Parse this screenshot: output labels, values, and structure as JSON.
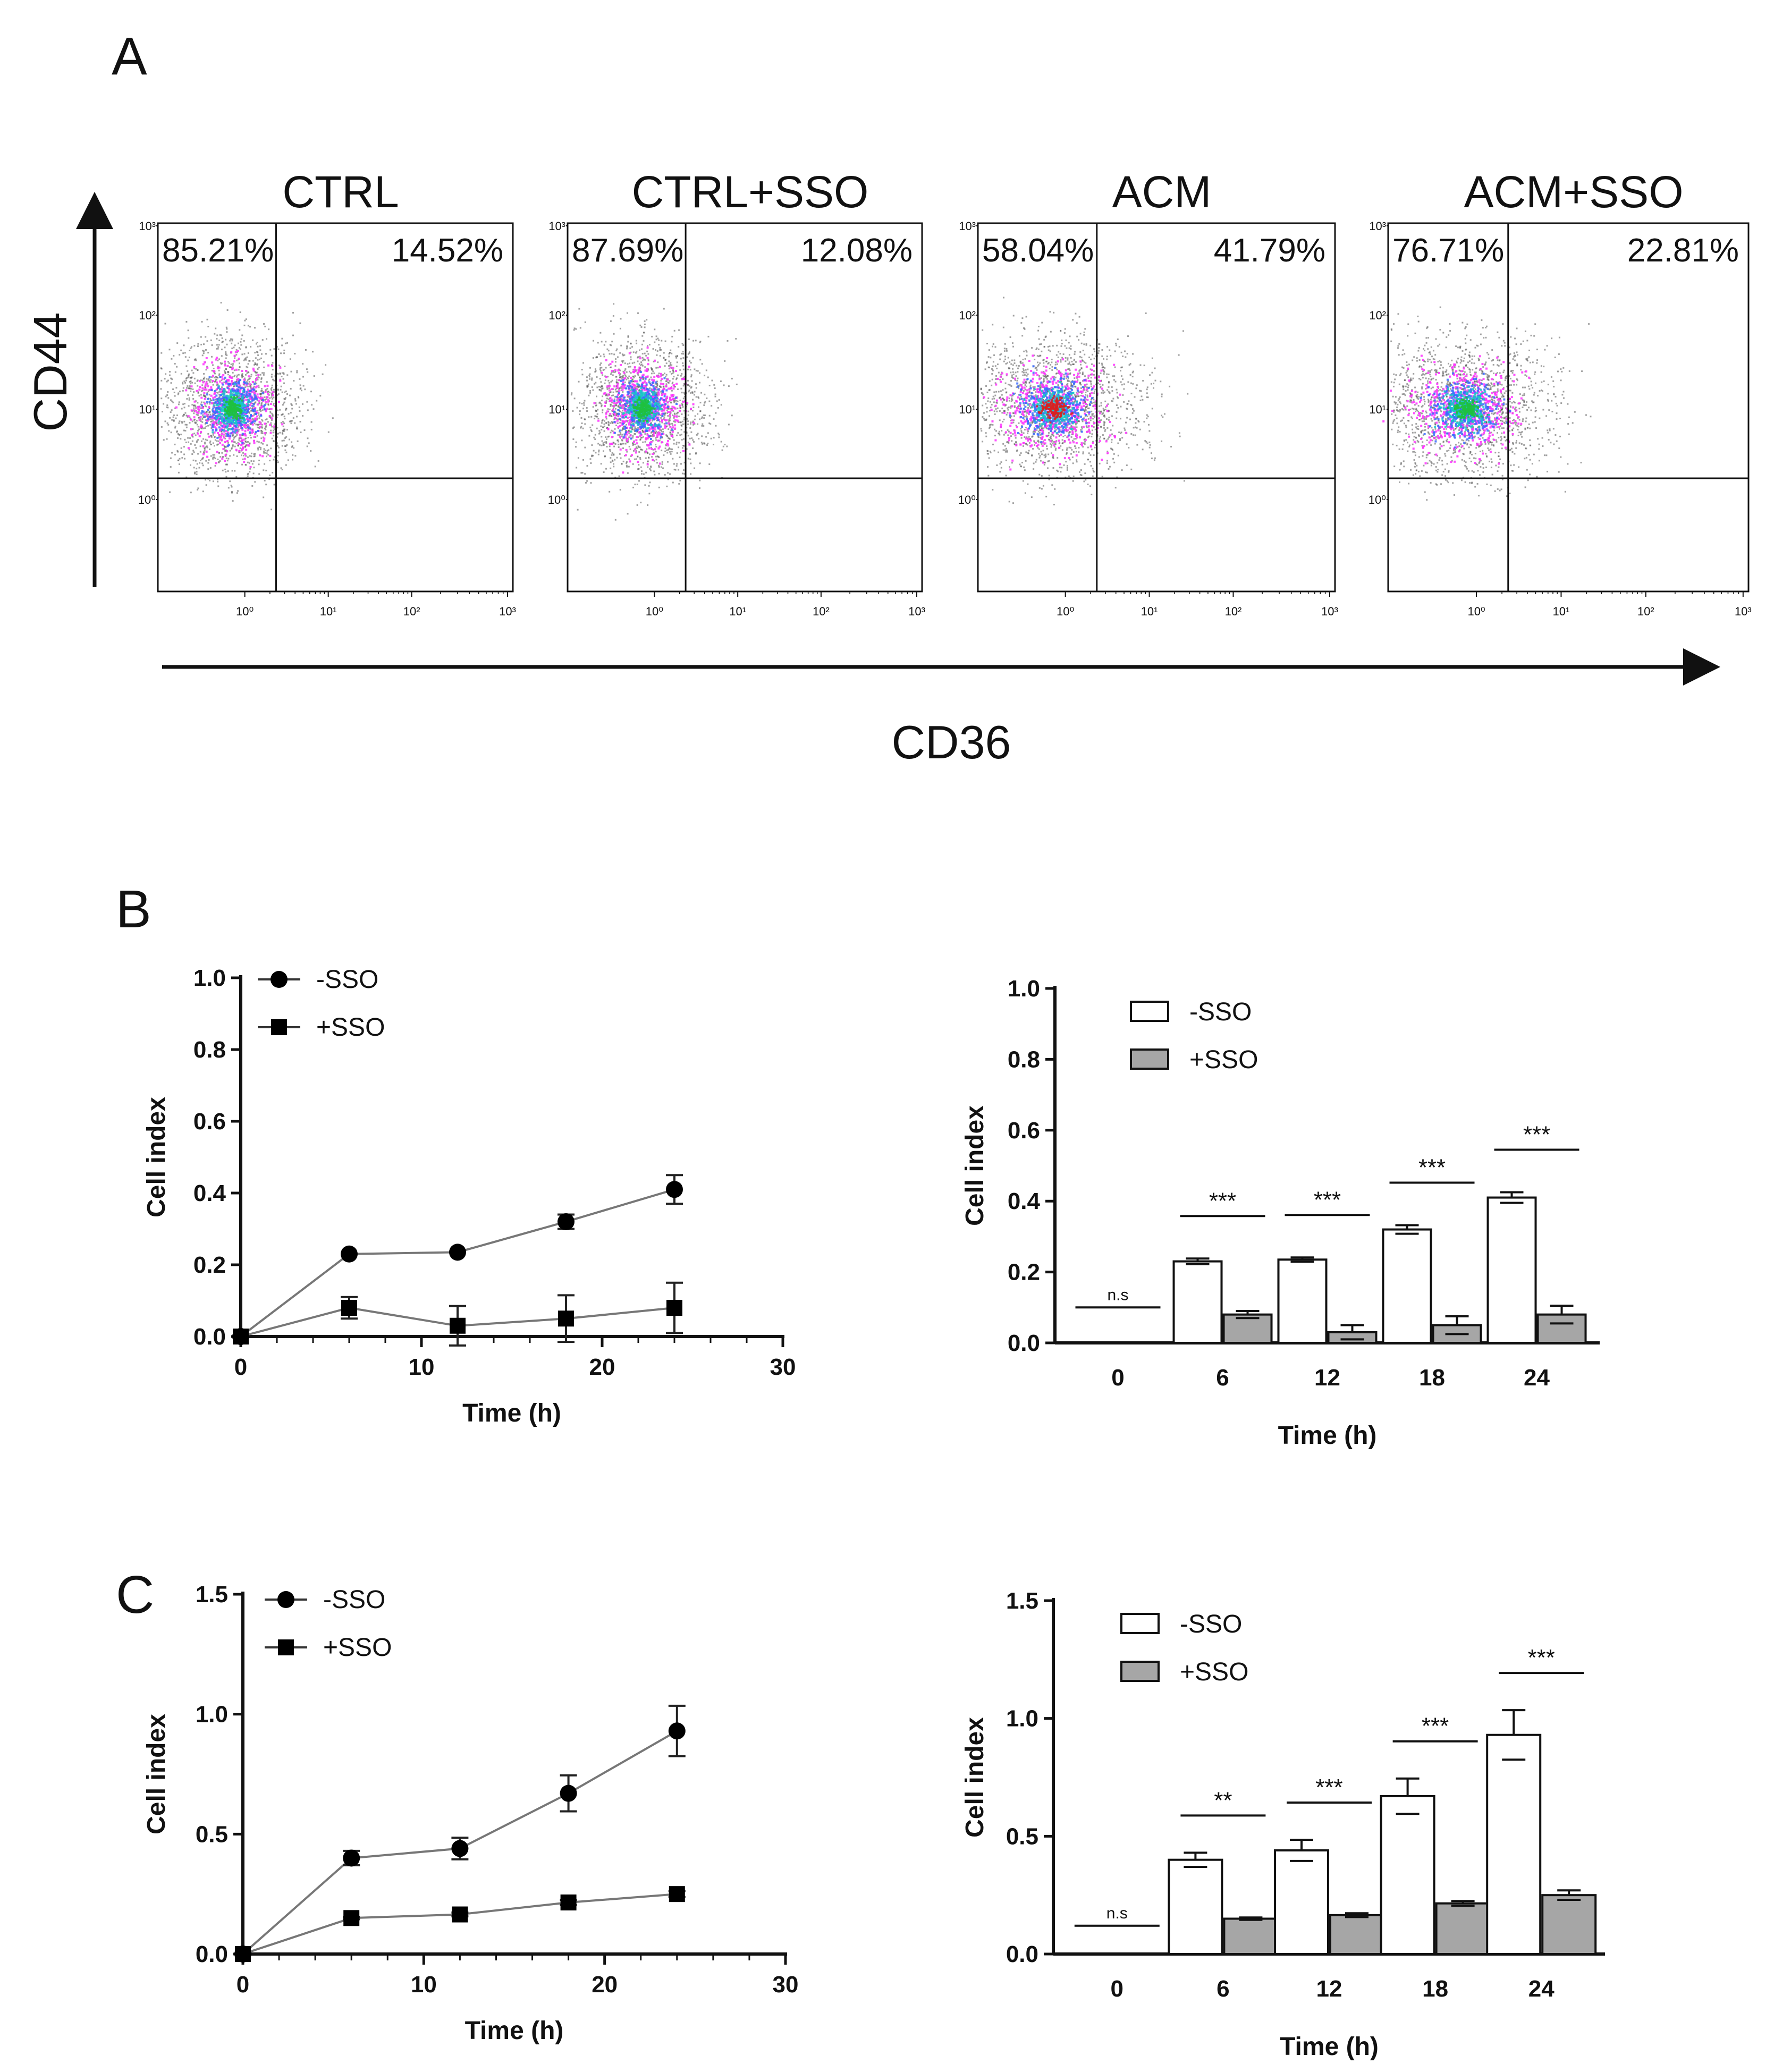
{
  "panels": {
    "a": "A",
    "b": "B",
    "c": "C"
  },
  "flow": {
    "y_axis_label": "CD44",
    "x_axis_label": "CD36",
    "tick_labels": [
      "10⁰",
      "10¹",
      "10²",
      "10³"
    ],
    "plots": [
      {
        "title": "CTRL",
        "left_pct": "85.21%",
        "right_pct": "14.52%",
        "center": "green"
      },
      {
        "title": "CTRL+SSO",
        "left_pct": "87.69%",
        "right_pct": "12.08%",
        "center": "green"
      },
      {
        "title": "ACM",
        "left_pct": "58.04%",
        "right_pct": "41.79%",
        "center": "red"
      },
      {
        "title": "ACM+SSO",
        "left_pct": "76.71%",
        "right_pct": "22.81%",
        "center": "green"
      }
    ]
  },
  "chart_data": [
    {
      "id": "B-line",
      "type": "line",
      "xlabel": "Time (h)",
      "ylabel": "Cell index",
      "xlim": [
        0,
        30
      ],
      "ylim": [
        0,
        1.0
      ],
      "xticks": [
        "0",
        "10",
        "20",
        "30"
      ],
      "yticks": [
        "0.0",
        "0.2",
        "0.4",
        "0.6",
        "0.8",
        "1.0"
      ],
      "series": [
        {
          "name": "-SSO",
          "marker": "circle",
          "x": [
            0,
            6,
            12,
            18,
            24
          ],
          "values": [
            0.0,
            0.23,
            0.235,
            0.32,
            0.41
          ],
          "err": [
            0,
            0,
            0,
            0.02,
            0.04
          ]
        },
        {
          "name": "+SSO",
          "marker": "square",
          "x": [
            0,
            6,
            12,
            18,
            24
          ],
          "values": [
            0.0,
            0.08,
            0.03,
            0.05,
            0.08
          ],
          "err": [
            0,
            0.03,
            0.055,
            0.065,
            0.07
          ]
        }
      ]
    },
    {
      "id": "B-bar",
      "type": "bar",
      "xlabel": "Time (h)",
      "ylabel": "Cell index",
      "ylim": [
        0,
        1.0
      ],
      "yticks": [
        "0.0",
        "0.2",
        "0.4",
        "0.6",
        "0.8",
        "1.0"
      ],
      "categories": [
        "0",
        "6",
        "12",
        "18",
        "24"
      ],
      "series": [
        {
          "name": "-SSO",
          "values": [
            0.0,
            0.23,
            0.235,
            0.32,
            0.41
          ],
          "err": [
            0,
            0.008,
            0.006,
            0.012,
            0.015
          ]
        },
        {
          "name": "+SSO",
          "values": [
            0.0,
            0.08,
            0.03,
            0.05,
            0.08
          ],
          "err": [
            0,
            0.01,
            0.02,
            0.025,
            0.025
          ]
        }
      ],
      "significance": [
        "n.s",
        "***",
        "***",
        "***",
        "***"
      ]
    },
    {
      "id": "C-line",
      "type": "line",
      "xlabel": "Time (h)",
      "ylabel": "Cell index",
      "xlim": [
        0,
        30
      ],
      "ylim": [
        0,
        1.5
      ],
      "xticks": [
        "0",
        "10",
        "20",
        "30"
      ],
      "yticks": [
        "0.0",
        "0.5",
        "1.0",
        "1.5"
      ],
      "series": [
        {
          "name": "-SSO",
          "marker": "circle",
          "x": [
            0,
            6,
            12,
            18,
            24
          ],
          "values": [
            0.0,
            0.4,
            0.44,
            0.67,
            0.93
          ],
          "err": [
            0,
            0.03,
            0.045,
            0.075,
            0.105
          ]
        },
        {
          "name": "+SSO",
          "marker": "square",
          "x": [
            0,
            6,
            12,
            18,
            24
          ],
          "values": [
            0.0,
            0.15,
            0.165,
            0.215,
            0.25
          ],
          "err": [
            0,
            0.005,
            0.008,
            0.01,
            0.012
          ]
        }
      ]
    },
    {
      "id": "C-bar",
      "type": "bar",
      "xlabel": "Time (h)",
      "ylabel": "Cell index",
      "ylim": [
        0,
        1.5
      ],
      "yticks": [
        "0.0",
        "0.5",
        "1.0",
        "1.5"
      ],
      "categories": [
        "0",
        "6",
        "12",
        "18",
        "24"
      ],
      "series": [
        {
          "name": "-SSO",
          "values": [
            0.0,
            0.4,
            0.44,
            0.67,
            0.93
          ],
          "err": [
            0,
            0.03,
            0.045,
            0.075,
            0.105
          ]
        },
        {
          "name": "+SSO",
          "values": [
            0.0,
            0.15,
            0.165,
            0.215,
            0.25
          ],
          "err": [
            0,
            0.005,
            0.008,
            0.01,
            0.02
          ]
        }
      ],
      "significance": [
        "n.s",
        "**",
        "***",
        "***",
        "***"
      ]
    }
  ],
  "colors": {
    "axis": "#111111",
    "line": "#777777",
    "bar_minus": "#ffffff",
    "bar_plus": "#a6a6a6",
    "dot_outer": "#555555",
    "dot_magenta": "#ff33ff",
    "dot_blue": "#3a6bff",
    "dot_cyan": "#19c8c8",
    "dot_green": "#1fbf3f",
    "dot_red": "#d92020"
  }
}
